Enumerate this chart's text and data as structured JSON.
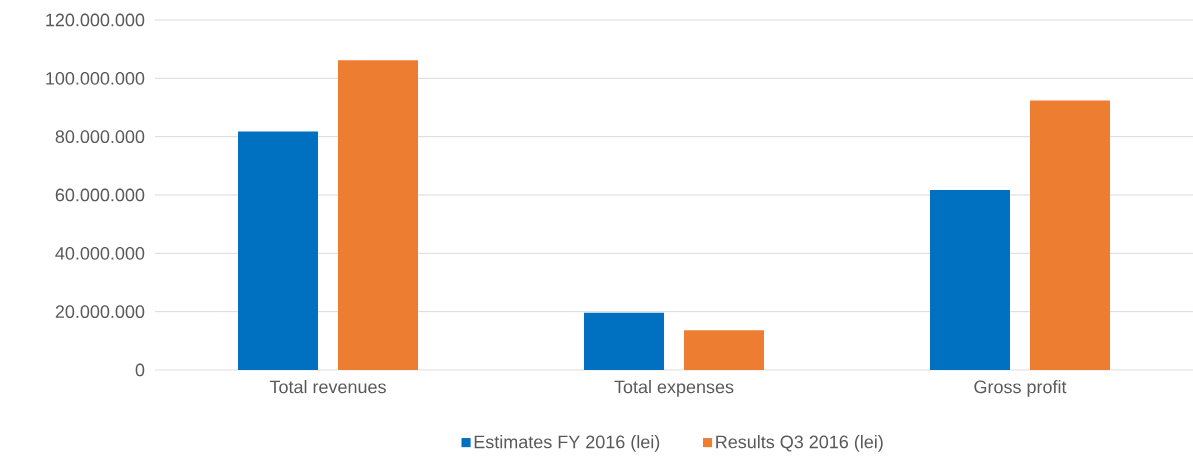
{
  "chart_data": {
    "type": "bar",
    "categories": [
      "Total revenues",
      "Total expenses",
      "Gross profit"
    ],
    "series": [
      {
        "name": "Estimates FY 2016 (lei)",
        "color": "#0070c0",
        "values": [
          81750000,
          19600000,
          61750000
        ]
      },
      {
        "name": "Results Q3 2016 (lei)",
        "color": "#ed7d31",
        "values": [
          106200000,
          13600000,
          92400000
        ]
      }
    ],
    "ylim": [
      0,
      120000000
    ],
    "yticks": [
      {
        "value": 0,
        "label": "0"
      },
      {
        "value": 20000000,
        "label": "20.000.000"
      },
      {
        "value": 40000000,
        "label": "40.000.000"
      },
      {
        "value": 60000000,
        "label": "60.000.000"
      },
      {
        "value": 80000000,
        "label": "80.000.000"
      },
      {
        "value": 100000000,
        "label": "100.000.000"
      },
      {
        "value": 120000000,
        "label": "120.000.000"
      }
    ],
    "grid": "y",
    "legend": "bottom"
  }
}
